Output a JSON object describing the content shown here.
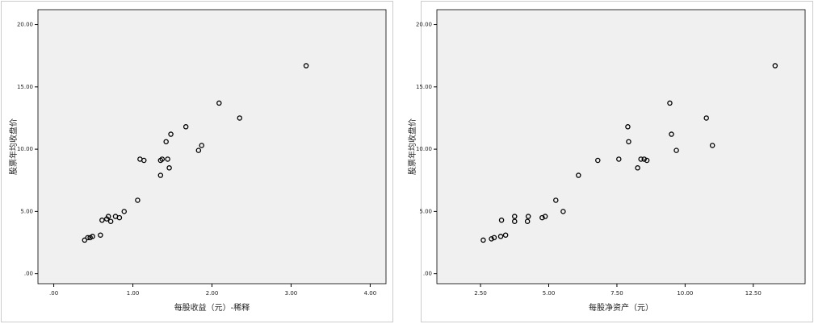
{
  "chart_data": [
    {
      "type": "scatter",
      "xlabel": "每股收益（元）-稀释",
      "ylabel": "股票年均收盘价",
      "x": [
        3.19,
        2.09,
        2.35,
        1.67,
        1.48,
        1.42,
        1.87,
        1.83,
        1.09,
        1.14,
        1.37,
        1.44,
        1.35,
        1.46,
        1.35,
        1.06,
        0.89,
        0.78,
        0.83,
        0.61,
        0.69,
        0.67,
        0.72,
        0.59,
        0.49,
        0.43,
        0.46,
        0.39
      ],
      "y": [
        16.7,
        13.7,
        12.5,
        11.8,
        11.2,
        10.6,
        10.3,
        9.9,
        9.2,
        9.1,
        9.2,
        9.2,
        9.1,
        8.5,
        7.9,
        5.9,
        5.0,
        4.6,
        4.5,
        4.3,
        4.6,
        4.4,
        4.2,
        3.1,
        3.0,
        2.9,
        2.9,
        2.7
      ],
      "xlim": [
        -0.2,
        4.2
      ],
      "ylim": [
        -0.8,
        21.2
      ],
      "xticks": [
        {
          "value": 0,
          "label": ".00"
        },
        {
          "value": 1,
          "label": "1.00"
        },
        {
          "value": 2,
          "label": "2.00"
        },
        {
          "value": 3,
          "label": "3.00"
        },
        {
          "value": 4,
          "label": "4.00"
        }
      ],
      "yticks": [
        {
          "value": 0,
          "label": ".00"
        },
        {
          "value": 5,
          "label": "5.00"
        },
        {
          "value": 10,
          "label": "10.00"
        },
        {
          "value": 15,
          "label": "15.00"
        },
        {
          "value": 20,
          "label": "20.00"
        }
      ],
      "color": "#000000"
    },
    {
      "type": "scatter",
      "xlabel": "每股净资产（元）",
      "ylabel": "股票年均收盘价",
      "x": [
        13.3,
        9.44,
        10.78,
        7.9,
        9.5,
        7.93,
        11.0,
        9.68,
        7.57,
        6.8,
        8.38,
        8.5,
        8.6,
        8.26,
        6.09,
        5.26,
        5.53,
        4.87,
        4.76,
        3.27,
        3.75,
        4.25,
        4.22,
        3.75,
        3.42,
        3.24,
        3.0,
        2.9,
        2.6
      ],
      "y": [
        16.7,
        13.7,
        12.5,
        11.8,
        11.2,
        10.6,
        10.3,
        9.9,
        9.2,
        9.1,
        9.2,
        9.2,
        9.1,
        8.5,
        7.9,
        5.9,
        5.0,
        4.6,
        4.5,
        4.3,
        4.6,
        4.6,
        4.2,
        4.2,
        3.1,
        3.0,
        2.9,
        2.8,
        2.7
      ],
      "xlim": [
        0.9,
        14.4
      ],
      "ylim": [
        -0.8,
        21.2
      ],
      "xticks": [
        {
          "value": 2.5,
          "label": "2.50"
        },
        {
          "value": 5,
          "label": "5.00"
        },
        {
          "value": 7.5,
          "label": "7.50"
        },
        {
          "value": 10,
          "label": "10.00"
        },
        {
          "value": 12.5,
          "label": "12.50"
        }
      ],
      "yticks": [
        {
          "value": 0,
          "label": ".00"
        },
        {
          "value": 5,
          "label": "5.00"
        },
        {
          "value": 10,
          "label": "10.00"
        },
        {
          "value": 15,
          "label": "15.00"
        },
        {
          "value": 20,
          "label": "20.00"
        }
      ],
      "color": "#000000"
    }
  ]
}
